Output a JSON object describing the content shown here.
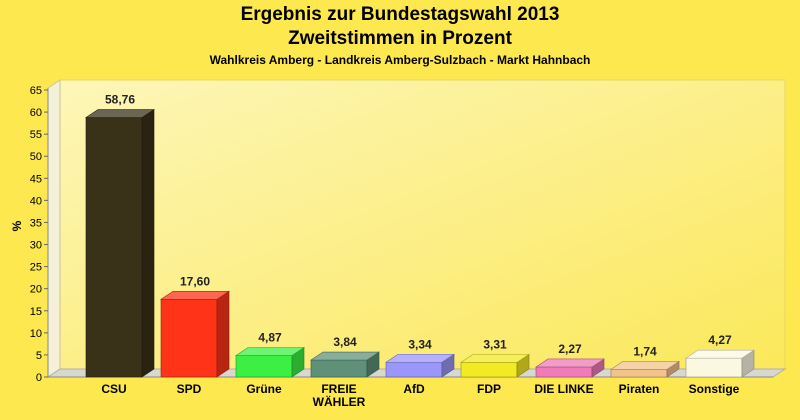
{
  "chart_data": {
    "type": "bar",
    "title": "Ergebnis zur Bundestagswahl 2013",
    "title_line2": "Zweitstimmen in Prozent",
    "subtitle": "Wahlkreis Amberg - Landkreis Amberg-Sulzbach - Markt Hahnbach",
    "ylabel": "%",
    "ylim": [
      0,
      65
    ],
    "yticks": [
      "0",
      "5",
      "10",
      "15",
      "20",
      "25",
      "30",
      "35",
      "40",
      "45",
      "50",
      "55",
      "60",
      "65"
    ],
    "grid": false,
    "categories": [
      {
        "lines": [
          "CSU"
        ]
      },
      {
        "lines": [
          "SPD"
        ]
      },
      {
        "lines": [
          "Grüne"
        ]
      },
      {
        "lines": [
          "FREIE",
          "WÄHLER"
        ]
      },
      {
        "lines": [
          "AfD"
        ]
      },
      {
        "lines": [
          "FDP"
        ]
      },
      {
        "lines": [
          "DIE LINKE"
        ]
      },
      {
        "lines": [
          "Piraten"
        ]
      },
      {
        "lines": [
          "Sonstige"
        ]
      }
    ],
    "values": [
      58.76,
      17.6,
      4.87,
      3.84,
      3.34,
      3.31,
      2.27,
      1.74,
      4.27
    ],
    "value_labels": [
      "58,76",
      "17,60",
      "4,87",
      "3,84",
      "3,34",
      "3,31",
      "2,27",
      "1,74",
      "4,27"
    ],
    "colors": [
      "#3a3119",
      "#ff3318",
      "#3cf043",
      "#5f9179",
      "#9b96fa",
      "#f1ea24",
      "#f07bb7",
      "#f3c38c",
      "#fbf8e2"
    ]
  }
}
